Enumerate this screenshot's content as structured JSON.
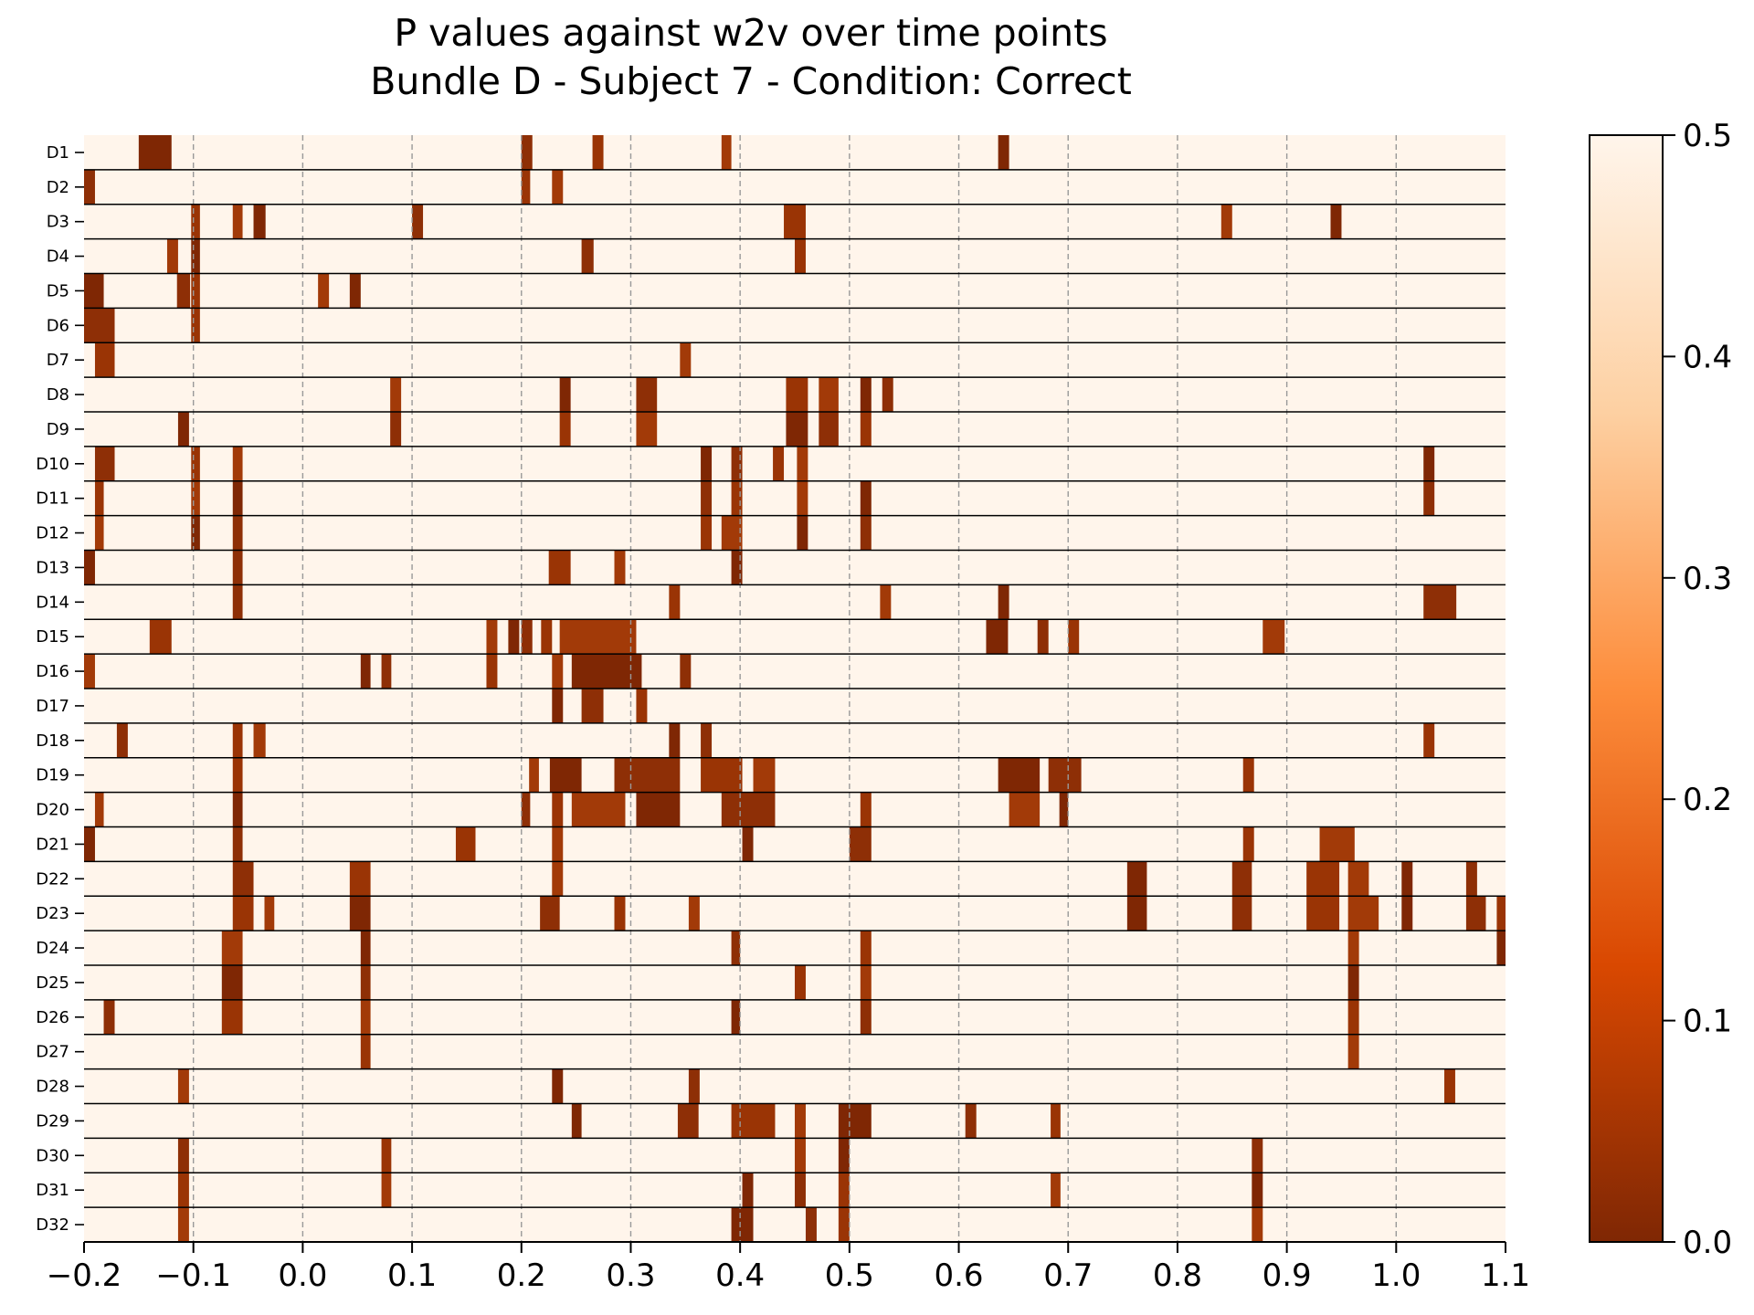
{
  "chart_data": {
    "type": "heatmap",
    "title_lines": [
      "P values against w2v over time points",
      "Bundle D - Subject 7 - Condition: Correct"
    ],
    "xlabel": "",
    "ylabel": "",
    "xlim": [
      -0.2,
      1.1
    ],
    "x_ticks": [
      "−0.2",
      "−0.1",
      "0.0",
      "0.1",
      "0.2",
      "0.3",
      "0.4",
      "0.5",
      "0.6",
      "0.7",
      "0.8",
      "0.9",
      "1.0",
      "1.1"
    ],
    "grid": "vertical dashed at x ticks",
    "colormap": {
      "name": "Oranges_r",
      "stops": [
        "#7f2704",
        "#d94801",
        "#fd8d3c",
        "#fdd0a2",
        "#fff5eb"
      ]
    },
    "colorbar": {
      "range": [
        0.0,
        0.5
      ],
      "ticks": [
        "0.0",
        "0.1",
        "0.2",
        "0.3",
        "0.4",
        "0.5"
      ]
    },
    "background_value": 0.5,
    "rows": [
      {
        "label": "D1",
        "segments": [
          [
            -0.15,
            -0.12
          ],
          [
            0.2,
            0.21
          ],
          [
            0.265,
            0.275
          ],
          [
            0.383,
            0.392
          ],
          [
            0.636,
            0.646
          ]
        ]
      },
      {
        "label": "D2",
        "segments": [
          [
            -0.2,
            -0.19
          ],
          [
            0.2,
            0.208
          ],
          [
            0.228,
            0.238
          ]
        ]
      },
      {
        "label": "D3",
        "segments": [
          [
            -0.102,
            -0.094
          ],
          [
            -0.064,
            -0.055
          ],
          [
            -0.045,
            -0.034
          ],
          [
            0.1,
            0.11
          ],
          [
            0.44,
            0.46
          ],
          [
            0.84,
            0.85
          ],
          [
            0.94,
            0.95
          ]
        ]
      },
      {
        "label": "D4",
        "segments": [
          [
            -0.124,
            -0.114
          ],
          [
            -0.102,
            -0.094
          ],
          [
            0.255,
            0.266
          ],
          [
            0.45,
            0.46
          ]
        ]
      },
      {
        "label": "D5",
        "segments": [
          [
            -0.2,
            -0.182
          ],
          [
            -0.115,
            -0.103
          ],
          [
            -0.102,
            -0.094
          ],
          [
            0.014,
            0.024
          ],
          [
            0.043,
            0.053
          ]
        ]
      },
      {
        "label": "D6",
        "segments": [
          [
            -0.2,
            -0.172
          ],
          [
            -0.102,
            -0.094
          ]
        ]
      },
      {
        "label": "D7",
        "segments": [
          [
            -0.19,
            -0.172
          ],
          [
            0.345,
            0.355
          ]
        ]
      },
      {
        "label": "D8",
        "segments": [
          [
            0.08,
            0.09
          ],
          [
            0.235,
            0.245
          ],
          [
            0.305,
            0.324
          ],
          [
            0.442,
            0.462
          ],
          [
            0.472,
            0.49
          ],
          [
            0.51,
            0.52
          ],
          [
            0.53,
            0.54
          ]
        ]
      },
      {
        "label": "D9",
        "segments": [
          [
            -0.114,
            -0.104
          ],
          [
            0.08,
            0.09
          ],
          [
            0.235,
            0.245
          ],
          [
            0.305,
            0.324
          ],
          [
            0.442,
            0.462
          ],
          [
            0.472,
            0.49
          ],
          [
            0.51,
            0.52
          ]
        ]
      },
      {
        "label": "D10",
        "segments": [
          [
            -0.19,
            -0.172
          ],
          [
            -0.102,
            -0.094
          ],
          [
            -0.064,
            -0.055
          ],
          [
            0.364,
            0.374
          ],
          [
            0.392,
            0.402
          ],
          [
            0.43,
            0.44
          ],
          [
            0.452,
            0.462
          ],
          [
            1.025,
            1.035
          ]
        ]
      },
      {
        "label": "D11",
        "segments": [
          [
            -0.19,
            -0.182
          ],
          [
            -0.102,
            -0.094
          ],
          [
            -0.064,
            -0.055
          ],
          [
            0.364,
            0.374
          ],
          [
            0.392,
            0.402
          ],
          [
            0.452,
            0.462
          ],
          [
            0.51,
            0.52
          ],
          [
            1.025,
            1.035
          ]
        ]
      },
      {
        "label": "D12",
        "segments": [
          [
            -0.19,
            -0.182
          ],
          [
            -0.102,
            -0.094
          ],
          [
            -0.064,
            -0.055
          ],
          [
            0.364,
            0.374
          ],
          [
            0.383,
            0.402
          ],
          [
            0.452,
            0.462
          ],
          [
            0.51,
            0.52
          ]
        ]
      },
      {
        "label": "D13",
        "segments": [
          [
            -0.2,
            -0.19
          ],
          [
            -0.064,
            -0.055
          ],
          [
            0.225,
            0.245
          ],
          [
            0.285,
            0.295
          ],
          [
            0.392,
            0.402
          ]
        ]
      },
      {
        "label": "D14",
        "segments": [
          [
            -0.064,
            -0.055
          ],
          [
            0.335,
            0.345
          ],
          [
            0.528,
            0.538
          ],
          [
            0.636,
            0.646
          ],
          [
            1.025,
            1.055
          ]
        ]
      },
      {
        "label": "D15",
        "segments": [
          [
            -0.14,
            -0.12
          ],
          [
            0.168,
            0.178
          ],
          [
            0.188,
            0.198
          ],
          [
            0.2,
            0.21
          ],
          [
            0.218,
            0.228
          ],
          [
            0.235,
            0.305
          ],
          [
            0.625,
            0.645
          ],
          [
            0.672,
            0.682
          ],
          [
            0.7,
            0.71
          ],
          [
            0.878,
            0.898
          ]
        ]
      },
      {
        "label": "D16",
        "segments": [
          [
            -0.2,
            -0.19
          ],
          [
            0.053,
            0.062
          ],
          [
            0.072,
            0.081
          ],
          [
            0.168,
            0.178
          ],
          [
            0.228,
            0.238
          ],
          [
            0.246,
            0.31
          ],
          [
            0.345,
            0.355
          ]
        ]
      },
      {
        "label": "D17",
        "segments": [
          [
            0.228,
            0.238
          ],
          [
            0.255,
            0.275
          ],
          [
            0.305,
            0.315
          ]
        ]
      },
      {
        "label": "D18",
        "segments": [
          [
            -0.17,
            -0.16
          ],
          [
            -0.064,
            -0.055
          ],
          [
            -0.045,
            -0.034
          ],
          [
            0.335,
            0.345
          ],
          [
            0.364,
            0.374
          ],
          [
            1.025,
            1.035
          ]
        ]
      },
      {
        "label": "D19",
        "segments": [
          [
            -0.064,
            -0.055
          ],
          [
            0.207,
            0.216
          ],
          [
            0.226,
            0.255
          ],
          [
            0.285,
            0.345
          ],
          [
            0.364,
            0.402
          ],
          [
            0.412,
            0.432
          ],
          [
            0.636,
            0.674
          ],
          [
            0.682,
            0.712
          ],
          [
            0.86,
            0.87
          ]
        ]
      },
      {
        "label": "D20",
        "segments": [
          [
            -0.19,
            -0.182
          ],
          [
            -0.064,
            -0.055
          ],
          [
            0.2,
            0.208
          ],
          [
            0.228,
            0.238
          ],
          [
            0.246,
            0.295
          ],
          [
            0.305,
            0.345
          ],
          [
            0.383,
            0.432
          ],
          [
            0.51,
            0.52
          ],
          [
            0.646,
            0.674
          ],
          [
            0.692,
            0.7
          ]
        ]
      },
      {
        "label": "D21",
        "segments": [
          [
            -0.2,
            -0.19
          ],
          [
            -0.064,
            -0.055
          ],
          [
            0.14,
            0.158
          ],
          [
            0.228,
            0.238
          ],
          [
            0.402,
            0.412
          ],
          [
            0.5,
            0.52
          ],
          [
            0.86,
            0.87
          ],
          [
            0.93,
            0.962
          ]
        ]
      },
      {
        "label": "D22",
        "segments": [
          [
            -0.064,
            -0.045
          ],
          [
            0.043,
            0.062
          ],
          [
            0.228,
            0.238
          ],
          [
            0.754,
            0.772
          ],
          [
            0.85,
            0.868
          ],
          [
            0.918,
            0.948
          ],
          [
            0.956,
            0.975
          ],
          [
            1.005,
            1.015
          ],
          [
            1.064,
            1.074
          ]
        ]
      },
      {
        "label": "D23",
        "segments": [
          [
            -0.064,
            -0.045
          ],
          [
            -0.035,
            -0.026
          ],
          [
            0.043,
            0.062
          ],
          [
            0.217,
            0.235
          ],
          [
            0.285,
            0.295
          ],
          [
            0.353,
            0.363
          ],
          [
            0.754,
            0.772
          ],
          [
            0.85,
            0.868
          ],
          [
            0.918,
            0.948
          ],
          [
            0.956,
            0.984
          ],
          [
            1.005,
            1.015
          ],
          [
            1.064,
            1.082
          ],
          [
            1.092,
            1.1
          ]
        ]
      },
      {
        "label": "D24",
        "segments": [
          [
            -0.074,
            -0.055
          ],
          [
            0.053,
            0.062
          ],
          [
            0.392,
            0.4
          ],
          [
            0.51,
            0.52
          ],
          [
            0.956,
            0.966
          ],
          [
            1.092,
            1.1
          ]
        ]
      },
      {
        "label": "D25",
        "segments": [
          [
            -0.074,
            -0.055
          ],
          [
            0.053,
            0.062
          ],
          [
            0.45,
            0.46
          ],
          [
            0.51,
            0.52
          ],
          [
            0.956,
            0.966
          ]
        ]
      },
      {
        "label": "D26",
        "segments": [
          [
            -0.182,
            -0.172
          ],
          [
            -0.074,
            -0.055
          ],
          [
            0.053,
            0.062
          ],
          [
            0.392,
            0.4
          ],
          [
            0.51,
            0.52
          ],
          [
            0.956,
            0.966
          ]
        ]
      },
      {
        "label": "D27",
        "segments": [
          [
            0.053,
            0.062
          ],
          [
            0.956,
            0.966
          ]
        ]
      },
      {
        "label": "D28",
        "segments": [
          [
            -0.114,
            -0.104
          ],
          [
            0.228,
            0.238
          ],
          [
            0.353,
            0.363
          ],
          [
            1.044,
            1.054
          ]
        ]
      },
      {
        "label": "D29",
        "segments": [
          [
            0.246,
            0.255
          ],
          [
            0.343,
            0.362
          ],
          [
            0.392,
            0.432
          ],
          [
            0.45,
            0.46
          ],
          [
            0.49,
            0.52
          ],
          [
            0.606,
            0.616
          ],
          [
            0.684,
            0.693
          ]
        ]
      },
      {
        "label": "D30",
        "segments": [
          [
            -0.114,
            -0.104
          ],
          [
            0.072,
            0.081
          ],
          [
            0.45,
            0.46
          ],
          [
            0.49,
            0.5
          ],
          [
            0.868,
            0.878
          ]
        ]
      },
      {
        "label": "D31",
        "segments": [
          [
            -0.114,
            -0.104
          ],
          [
            0.072,
            0.081
          ],
          [
            0.402,
            0.412
          ],
          [
            0.45,
            0.46
          ],
          [
            0.49,
            0.5
          ],
          [
            0.684,
            0.693
          ],
          [
            0.868,
            0.878
          ]
        ]
      },
      {
        "label": "D32",
        "segments": [
          [
            -0.114,
            -0.104
          ],
          [
            0.392,
            0.412
          ],
          [
            0.46,
            0.47
          ],
          [
            0.49,
            0.5
          ],
          [
            0.868,
            0.878
          ]
        ]
      }
    ]
  }
}
